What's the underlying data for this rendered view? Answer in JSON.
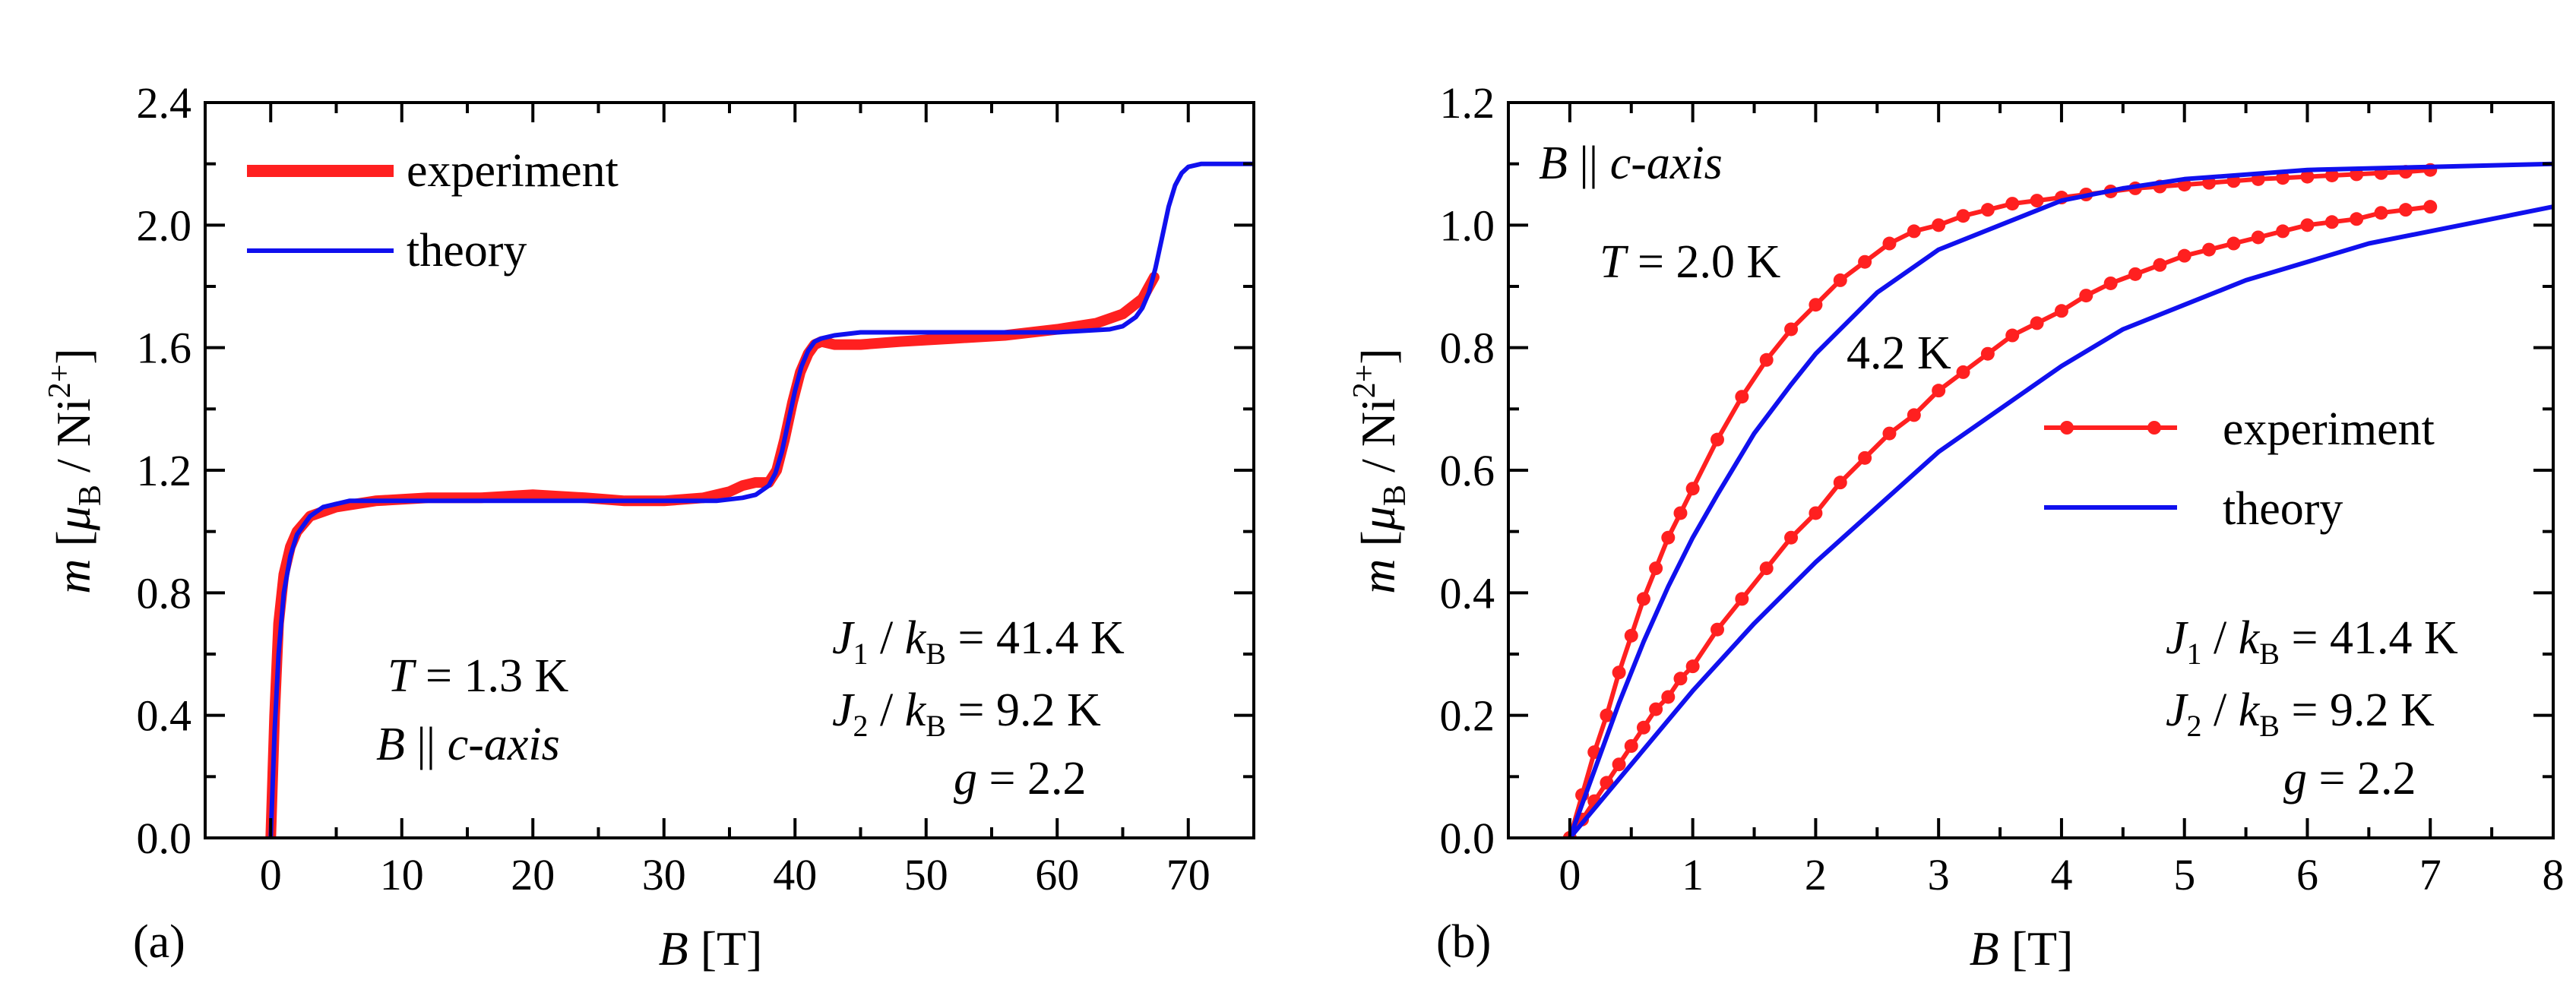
{
  "chart_data": [
    {
      "panel": "(a)",
      "type": "line",
      "xlabel": "B [T]",
      "ylabel": "m [μB / Ni2+]",
      "xlim": [
        -5,
        75
      ],
      "ylim": [
        0,
        2.4
      ],
      "xticks": [
        0,
        10,
        20,
        30,
        40,
        50,
        60,
        70
      ],
      "yticks": [
        "0.0",
        "0.4",
        "0.8",
        "1.2",
        "1.6",
        "2.0",
        "2.4"
      ],
      "legend": {
        "position": "top-left",
        "entries": [
          "experiment",
          "theory"
        ]
      },
      "annotations": {
        "temp": "T = 1.3 K",
        "field": "B || c-axis",
        "j1": "J1 / kB = 41.4 K",
        "j2": "J2 / kB = 9.2 K",
        "g": "g = 2.2"
      },
      "series": [
        {
          "name": "experiment",
          "color": "#ff2020",
          "style": "thick-line",
          "x": [
            0,
            0.3,
            0.6,
            1,
            1.5,
            2,
            3,
            5,
            8,
            12,
            16,
            20,
            24,
            27,
            30,
            33,
            35,
            36,
            37,
            38,
            38.6,
            39.2,
            39.8,
            40.4,
            41,
            41.5,
            42,
            43,
            45,
            48,
            52,
            56,
            60,
            63,
            65,
            66.5,
            67.4
          ],
          "y": [
            0.0,
            0.4,
            0.7,
            0.86,
            0.95,
            1.0,
            1.05,
            1.08,
            1.1,
            1.11,
            1.11,
            1.12,
            1.11,
            1.1,
            1.1,
            1.11,
            1.13,
            1.15,
            1.16,
            1.16,
            1.2,
            1.3,
            1.42,
            1.52,
            1.58,
            1.61,
            1.62,
            1.61,
            1.61,
            1.62,
            1.63,
            1.64,
            1.66,
            1.68,
            1.71,
            1.76,
            1.83
          ]
        },
        {
          "name": "theory",
          "color": "#1010ee",
          "style": "line",
          "x": [
            0,
            0.3,
            0.6,
            1,
            1.5,
            2,
            3,
            4,
            6,
            10,
            20,
            30,
            34,
            36,
            37,
            38,
            38.5,
            39,
            39.5,
            40,
            40.5,
            41,
            41.5,
            42,
            43,
            45,
            50,
            60,
            64,
            65,
            66,
            66.5,
            67,
            67.5,
            68,
            68.5,
            69,
            69.5,
            70,
            71,
            72,
            75
          ],
          "y": [
            0.0,
            0.35,
            0.6,
            0.8,
            0.92,
            0.99,
            1.05,
            1.08,
            1.1,
            1.1,
            1.1,
            1.1,
            1.1,
            1.11,
            1.12,
            1.15,
            1.19,
            1.26,
            1.36,
            1.46,
            1.54,
            1.59,
            1.62,
            1.63,
            1.64,
            1.65,
            1.65,
            1.65,
            1.66,
            1.67,
            1.7,
            1.73,
            1.78,
            1.86,
            1.96,
            2.06,
            2.13,
            2.17,
            2.19,
            2.2,
            2.2,
            2.2
          ]
        }
      ]
    },
    {
      "panel": "(b)",
      "type": "line",
      "xlabel": "B [T]",
      "ylabel": "m [μB / Ni2+]",
      "xlim": [
        -0.5,
        8
      ],
      "ylim": [
        0,
        1.2
      ],
      "xticks": [
        0,
        1,
        2,
        3,
        4,
        5,
        6,
        7,
        8
      ],
      "yticks": [
        "0.0",
        "0.2",
        "0.4",
        "0.6",
        "0.8",
        "1.0",
        "1.2"
      ],
      "legend": {
        "position": "center-right",
        "entries": [
          "experiment",
          "theory"
        ]
      },
      "annotations": {
        "field": "B || c-axis",
        "t20": "T = 2.0 K",
        "t42": "4.2 K",
        "j1": "J1 / kB = 41.4 K",
        "j2": "J2 / kB = 9.2 K",
        "g": "g = 2.2"
      },
      "series": [
        {
          "name": "experiment T=2.0 K",
          "color": "#ff2020",
          "style": "line+markers",
          "x": [
            0,
            0.1,
            0.2,
            0.3,
            0.4,
            0.5,
            0.6,
            0.7,
            0.8,
            0.9,
            1.0,
            1.2,
            1.4,
            1.6,
            1.8,
            2.0,
            2.2,
            2.4,
            2.6,
            2.8,
            3.0,
            3.2,
            3.4,
            3.6,
            3.8,
            4.0,
            4.2,
            4.4,
            4.6,
            4.8,
            5.0,
            5.2,
            5.4,
            5.6,
            5.8,
            6.0,
            6.2,
            6.4,
            6.6,
            6.8,
            7.0
          ],
          "y": [
            0.0,
            0.07,
            0.14,
            0.2,
            0.27,
            0.33,
            0.39,
            0.44,
            0.49,
            0.53,
            0.57,
            0.65,
            0.72,
            0.78,
            0.83,
            0.87,
            0.91,
            0.94,
            0.97,
            0.99,
            1.0,
            1.015,
            1.025,
            1.035,
            1.04,
            1.045,
            1.05,
            1.055,
            1.06,
            1.063,
            1.066,
            1.069,
            1.072,
            1.075,
            1.077,
            1.079,
            1.081,
            1.083,
            1.085,
            1.087,
            1.09
          ]
        },
        {
          "name": "experiment T=4.2 K",
          "color": "#ff2020",
          "style": "line+markers",
          "x": [
            0,
            0.1,
            0.2,
            0.3,
            0.4,
            0.5,
            0.6,
            0.7,
            0.8,
            0.9,
            1.0,
            1.2,
            1.4,
            1.6,
            1.8,
            2.0,
            2.2,
            2.4,
            2.6,
            2.8,
            3.0,
            3.2,
            3.4,
            3.6,
            3.8,
            4.0,
            4.2,
            4.4,
            4.6,
            4.8,
            5.0,
            5.2,
            5.4,
            5.6,
            5.8,
            6.0,
            6.2,
            6.4,
            6.6,
            6.8,
            7.0
          ],
          "y": [
            0.0,
            0.03,
            0.06,
            0.09,
            0.12,
            0.15,
            0.18,
            0.21,
            0.23,
            0.26,
            0.28,
            0.34,
            0.39,
            0.44,
            0.49,
            0.53,
            0.58,
            0.62,
            0.66,
            0.69,
            0.73,
            0.76,
            0.79,
            0.82,
            0.84,
            0.86,
            0.885,
            0.905,
            0.92,
            0.935,
            0.95,
            0.96,
            0.97,
            0.98,
            0.99,
            1.0,
            1.005,
            1.01,
            1.02,
            1.025,
            1.03
          ]
        },
        {
          "name": "theory T=2.0 K",
          "color": "#1010ee",
          "style": "line",
          "x": [
            0,
            0.2,
            0.4,
            0.6,
            0.8,
            1.0,
            1.2,
            1.5,
            1.8,
            2.0,
            2.5,
            3.0,
            3.5,
            4.0,
            4.5,
            5.0,
            6.0,
            7.0,
            8.0
          ],
          "y": [
            0.0,
            0.11,
            0.22,
            0.32,
            0.41,
            0.49,
            0.56,
            0.66,
            0.74,
            0.79,
            0.89,
            0.96,
            1.0,
            1.04,
            1.06,
            1.075,
            1.09,
            1.095,
            1.1
          ]
        },
        {
          "name": "theory T=4.2 K",
          "color": "#1010ee",
          "style": "line",
          "x": [
            0,
            0.5,
            1.0,
            1.5,
            2.0,
            2.5,
            3.0,
            3.5,
            4.0,
            4.5,
            5.0,
            5.5,
            6.0,
            6.5,
            7.0,
            7.5,
            8.0
          ],
          "y": [
            0.0,
            0.12,
            0.24,
            0.35,
            0.45,
            0.54,
            0.63,
            0.7,
            0.77,
            0.83,
            0.87,
            0.91,
            0.94,
            0.97,
            0.99,
            1.01,
            1.03
          ]
        }
      ]
    }
  ]
}
